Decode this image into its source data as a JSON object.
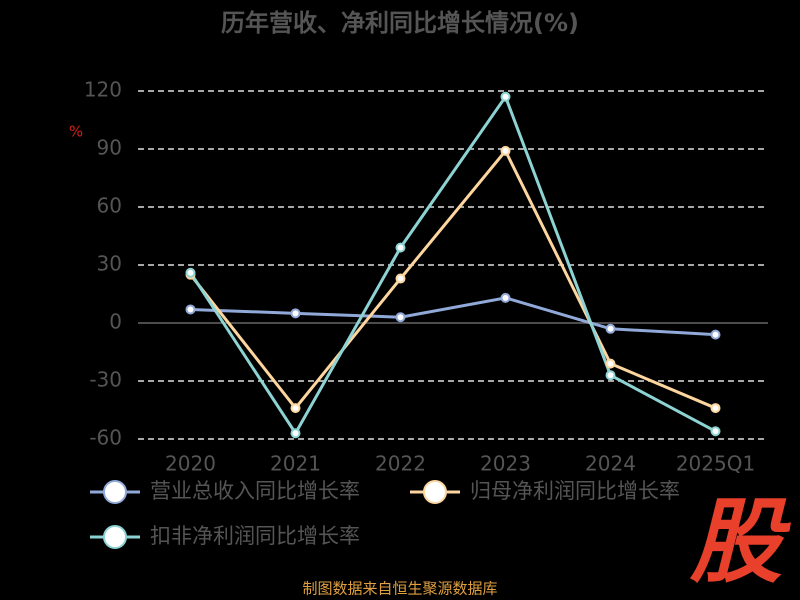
{
  "chart_data": {
    "type": "line",
    "title": "历年营收、净利同比增长情况(%)",
    "y_label": "%",
    "categories": [
      "2020",
      "2021",
      "2022",
      "2023",
      "2024",
      "2025Q1"
    ],
    "series": [
      {
        "name": "营业总收入同比增长率",
        "color": "#91a9d9",
        "values": [
          7,
          5,
          3,
          13,
          -3,
          -6
        ]
      },
      {
        "name": "归母净利润同比增长率",
        "color": "#fdd59f",
        "values": [
          25,
          -44,
          23,
          89,
          -21,
          -44
        ]
      },
      {
        "name": "扣非净利润同比增长率",
        "color": "#8dd3d3",
        "values": [
          26,
          -57,
          39,
          117,
          -27,
          -56
        ]
      }
    ],
    "ylim": [
      -60,
      120
    ],
    "yticks": [
      -60,
      -30,
      0,
      30,
      60,
      90,
      120
    ],
    "grid": true,
    "source": "制图数据来自恒生聚源数据库",
    "watermark": "股"
  }
}
